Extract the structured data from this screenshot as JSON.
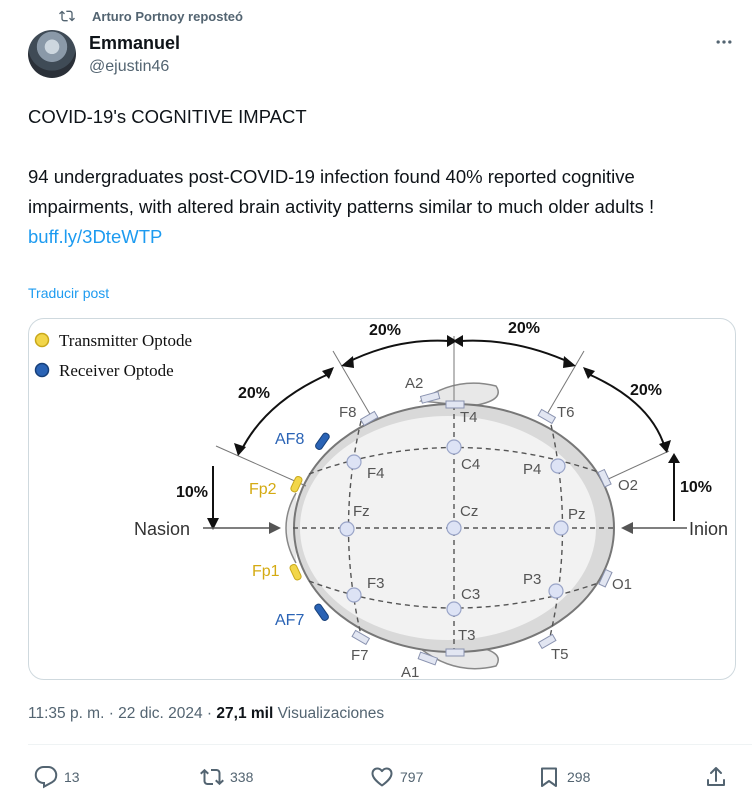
{
  "repost": {
    "text": "Arturo Portnoy reposteó"
  },
  "author": {
    "name": "Emmanuel",
    "handle": "@ejustin46"
  },
  "tweet": {
    "headline": "COVID-19's COGNITIVE IMPACT",
    "body": "94 undergraduates post-COVID-19 infection found 40% reported cognitive impairments, with altered brain activity patterns similar to much older adults !",
    "link": "buff.ly/3DteWTP",
    "translate": "Traducir post"
  },
  "figure": {
    "legend": {
      "transmitter": "Transmitter Optode",
      "receiver": "Receiver Optode"
    },
    "percent": {
      "top_left": "20%",
      "top_right": "20%",
      "upper_left": "20%",
      "upper_right": "20%",
      "left": "10%",
      "right": "10%"
    },
    "landmarks": {
      "front": "Nasion",
      "back": "Inion"
    },
    "electrodes": {
      "a1": "A1",
      "a2": "A2",
      "f8": "F8",
      "t4": "T4",
      "t6": "T6",
      "af8": "AF8",
      "f4": "F4",
      "c4": "C4",
      "p4": "P4",
      "o2": "O2",
      "fp2": "Fp2",
      "fz": "Fz",
      "cz": "Cz",
      "pz": "Pz",
      "fp1": "Fp1",
      "f3": "F3",
      "c3": "C3",
      "p3": "P3",
      "o1": "O1",
      "af7": "AF7",
      "t3": "T3",
      "f7": "F7",
      "t5": "T5"
    },
    "colors": {
      "transmitter": "#f2d64a",
      "receiver": "#2a63b5"
    }
  },
  "meta": {
    "time": "11:35 p. m. · 22 dic. 2024 · ",
    "views_count": "27,1 mil",
    "views_label": " Visualizaciones"
  },
  "actions": {
    "replies": "13",
    "reposts": "338",
    "likes": "797",
    "bookmarks": "298"
  },
  "icons": {
    "repost": "repost-icon",
    "more": "more-icon",
    "reply": "reply-icon",
    "retweet": "retweet-icon",
    "like": "heart-icon",
    "bookmark": "bookmark-icon",
    "share": "share-icon"
  }
}
